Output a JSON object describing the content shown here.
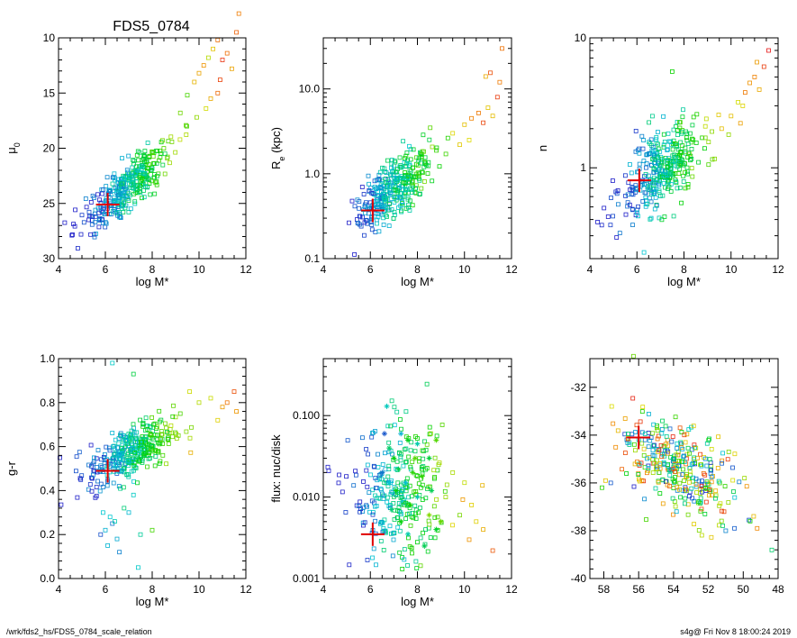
{
  "figure": {
    "title": "FDS5_0784",
    "footer_left": "/wrk/fds2_hs/FDS5_0784_scale_relation",
    "footer_right": "s4g@  Fri Nov  8 18:00:24 2019"
  },
  "chart_data": [
    {
      "type": "scatter",
      "xlabel": "log M*",
      "ylabel_parts": [
        "μ",
        "0"
      ],
      "xlim": [
        4,
        12
      ],
      "ylim": [
        30,
        10
      ],
      "yscale": "linear",
      "y_inverted": true,
      "xticks": [
        4,
        6,
        8,
        10,
        12
      ],
      "yticks": [
        10,
        15,
        20,
        25,
        30
      ],
      "ytick_labels": [
        "10",
        "15",
        "20",
        "25",
        "30"
      ],
      "marker_point": {
        "x": 6.1,
        "y": 25.1
      },
      "cloud": {
        "x_mean": 6.9,
        "x_sd": 0.85,
        "slope": -1.55,
        "y_at_x0": 25.0,
        "x0": 6.0,
        "scatter": 1.1,
        "n": 360
      },
      "tail": [
        [
          9.2,
          16.8
        ],
        [
          9.5,
          15.2
        ],
        [
          9.8,
          14.0
        ],
        [
          10.0,
          13.2
        ],
        [
          10.2,
          12.5
        ],
        [
          10.4,
          11.8
        ],
        [
          10.6,
          11.0
        ],
        [
          10.8,
          10.2
        ],
        [
          11.0,
          12.0
        ],
        [
          11.2,
          11.4
        ],
        [
          10.5,
          15.5
        ],
        [
          10.9,
          13.8
        ],
        [
          11.4,
          12.8
        ],
        [
          11.6,
          9.5
        ],
        [
          11.7,
          7.8
        ],
        [
          9.9,
          17.2
        ],
        [
          10.3,
          16.4
        ],
        [
          10.8,
          15.0
        ]
      ]
    },
    {
      "type": "scatter",
      "xlabel": "log M*",
      "ylabel_parts": [
        "R",
        "e",
        " (kpc)"
      ],
      "xlim": [
        4,
        12
      ],
      "ylim": [
        0.1,
        40
      ],
      "yscale": "log",
      "xticks": [
        4,
        6,
        8,
        10,
        12
      ],
      "yticks": [
        0.1,
        1.0,
        10.0
      ],
      "ytick_labels": [
        "0.1",
        "1.0",
        "10.0"
      ],
      "marker_point": {
        "x": 6.1,
        "y": 0.37
      },
      "cloud": {
        "x_mean": 7.0,
        "x_sd": 0.85,
        "slope": 0.22,
        "y_at_x0": -0.4,
        "x0": 6.0,
        "scatter": 0.17,
        "n": 360
      },
      "tail": [
        [
          9.5,
          3.0
        ],
        [
          10.0,
          3.8
        ],
        [
          10.3,
          4.5
        ],
        [
          10.6,
          5.2
        ],
        [
          10.8,
          4.0
        ],
        [
          11.0,
          6.0
        ],
        [
          11.2,
          4.8
        ],
        [
          11.4,
          8.0
        ],
        [
          11.6,
          30.0
        ],
        [
          11.5,
          12.0
        ],
        [
          10.9,
          14.0
        ],
        [
          11.1,
          15.5
        ],
        [
          10.2,
          2.5
        ],
        [
          9.8,
          2.2
        ]
      ]
    },
    {
      "type": "scatter",
      "xlabel": "log M*",
      "ylabel_parts": [
        "n"
      ],
      "xlim": [
        4,
        12
      ],
      "ylim": [
        0.2,
        10
      ],
      "yscale": "log",
      "xticks": [
        4,
        6,
        8,
        10,
        12
      ],
      "yticks": [
        1,
        10
      ],
      "ytick_labels": [
        "1",
        "10"
      ],
      "marker_point": {
        "x": 6.1,
        "y": 0.8
      },
      "cloud": {
        "x_mean": 7.0,
        "x_sd": 0.85,
        "slope": 0.11,
        "y_at_x0": -0.12,
        "x0": 6.0,
        "scatter": 0.15,
        "n": 360
      },
      "tail": [
        [
          9.6,
          2.0
        ],
        [
          10.0,
          2.5
        ],
        [
          10.3,
          3.2
        ],
        [
          10.6,
          3.8
        ],
        [
          10.8,
          4.5
        ],
        [
          11.0,
          5.0
        ],
        [
          11.2,
          4.0
        ],
        [
          11.4,
          6.0
        ],
        [
          11.6,
          8.0
        ],
        [
          10.5,
          3.0
        ],
        [
          11.1,
          6.5
        ],
        [
          9.9,
          1.8
        ],
        [
          7.5,
          5.5
        ],
        [
          10.4,
          2.2
        ]
      ]
    },
    {
      "type": "scatter",
      "xlabel": "log M*",
      "ylabel_parts": [
        "g-r"
      ],
      "xlim": [
        4,
        12
      ],
      "ylim": [
        0.0,
        1.0
      ],
      "yscale": "linear",
      "xticks": [
        4,
        6,
        8,
        10,
        12
      ],
      "yticks": [
        0.0,
        0.2,
        0.4,
        0.6,
        0.8,
        1.0
      ],
      "ytick_labels": [
        "0.0",
        "0.2",
        "0.4",
        "0.6",
        "0.8",
        "1.0"
      ],
      "marker_point": {
        "x": 6.1,
        "y": 0.49
      },
      "cloud": {
        "x_mean": 7.1,
        "x_sd": 0.9,
        "slope": 0.05,
        "y_at_x0": 0.52,
        "x0": 6.0,
        "scatter": 0.06,
        "n": 360
      },
      "tail": [
        [
          6.2,
          0.28
        ],
        [
          6.0,
          0.22
        ],
        [
          6.3,
          0.25
        ],
        [
          6.5,
          0.18
        ],
        [
          5.8,
          0.2
        ],
        [
          6.1,
          0.15
        ],
        [
          7.0,
          0.3
        ],
        [
          6.4,
          0.26
        ],
        [
          7.5,
          0.2
        ],
        [
          6.8,
          0.32
        ],
        [
          5.9,
          0.3
        ],
        [
          7.2,
          0.38
        ],
        [
          7.4,
          0.05
        ],
        [
          6.6,
          0.12
        ],
        [
          8.0,
          0.22
        ],
        [
          6.3,
          0.98
        ],
        [
          7.2,
          0.93
        ],
        [
          9.2,
          0.75
        ],
        [
          10.0,
          0.8
        ],
        [
          10.5,
          0.82
        ],
        [
          11.0,
          0.78
        ],
        [
          11.5,
          0.85
        ],
        [
          11.6,
          0.76
        ],
        [
          10.8,
          0.72
        ],
        [
          9.6,
          0.85
        ],
        [
          11.2,
          0.8
        ]
      ]
    },
    {
      "type": "scatter",
      "xlabel": "log M*",
      "ylabel_parts": [
        "flux: nuc/disk"
      ],
      "xlim": [
        4,
        12
      ],
      "ylim": [
        0.001,
        0.5
      ],
      "yscale": "log",
      "xticks": [
        4,
        6,
        8,
        10,
        12
      ],
      "yticks": [
        0.001,
        0.01,
        0.1
      ],
      "ytick_labels": [
        "0.001",
        "0.010",
        "0.100"
      ],
      "marker_point": {
        "x": 6.1,
        "y": 0.0035
      },
      "cloud": {
        "x_mean": 7.2,
        "x_sd": 1.0,
        "slope": 0.0,
        "y_at_x0": -2.0,
        "x0": 6.0,
        "scatter": 0.42,
        "n": 300
      },
      "stars": [
        [
          6.7,
          0.13
        ],
        [
          6.6,
          0.06
        ],
        [
          7.3,
          0.06
        ],
        [
          7.6,
          0.05
        ],
        [
          8.0,
          0.045
        ],
        [
          8.5,
          0.03
        ],
        [
          8.8,
          0.05
        ],
        [
          6.8,
          0.04
        ],
        [
          7.0,
          0.03
        ],
        [
          7.8,
          0.02
        ],
        [
          8.2,
          0.018
        ],
        [
          7.5,
          0.015
        ],
        [
          6.5,
          0.02
        ],
        [
          7.1,
          0.012
        ],
        [
          8.0,
          0.01
        ],
        [
          7.7,
          0.008
        ],
        [
          8.5,
          0.006
        ],
        [
          6.9,
          0.007
        ],
        [
          7.3,
          0.005
        ],
        [
          8.8,
          0.004
        ],
        [
          7.6,
          0.0035
        ],
        [
          8.3,
          0.0025
        ],
        [
          9.0,
          0.005
        ],
        [
          6.8,
          0.015
        ],
        [
          7.9,
          0.03
        ],
        [
          8.6,
          0.012
        ],
        [
          7.2,
          0.022
        ]
      ],
      "tail": [
        [
          9.5,
          0.02
        ],
        [
          10.0,
          0.015
        ],
        [
          10.3,
          0.008
        ],
        [
          10.5,
          0.005
        ],
        [
          10.8,
          0.004
        ],
        [
          11.2,
          0.0022
        ],
        [
          10.2,
          0.003
        ],
        [
          9.8,
          0.006
        ],
        [
          9.2,
          0.01
        ]
      ]
    },
    {
      "type": "scatter",
      "xlabel": "",
      "ylabel_parts": [
        ""
      ],
      "xlim": [
        58.8,
        48
      ],
      "ylim": [
        -40,
        -30.8
      ],
      "yscale": "linear",
      "x_inverted": true,
      "xticks": [
        58,
        56,
        54,
        52,
        50,
        48
      ],
      "yticks": [
        -40,
        -38,
        -36,
        -34,
        -32
      ],
      "ytick_labels": [
        "-40",
        "-38",
        "-36",
        "-34",
        "-32"
      ],
      "marker_point": {
        "x": 56.0,
        "y": -34.1
      },
      "cloud": {
        "x_mean": 53.8,
        "x_sd": 1.6,
        "slope": 0.35,
        "y_at_x0": -35.3,
        "x0": 54.0,
        "scatter": 0.9,
        "n": 330
      },
      "tail": [
        [
          56.3,
          -30.7
        ],
        [
          57.9,
          -35.9
        ],
        [
          58.1,
          -36.2
        ],
        [
          57.6,
          -36.0
        ],
        [
          49.6,
          -37.6
        ],
        [
          49.2,
          -37.9
        ],
        [
          49.4,
          -37.4
        ],
        [
          50.5,
          -37.9
        ],
        [
          51.0,
          -38.0
        ]
      ]
    }
  ]
}
